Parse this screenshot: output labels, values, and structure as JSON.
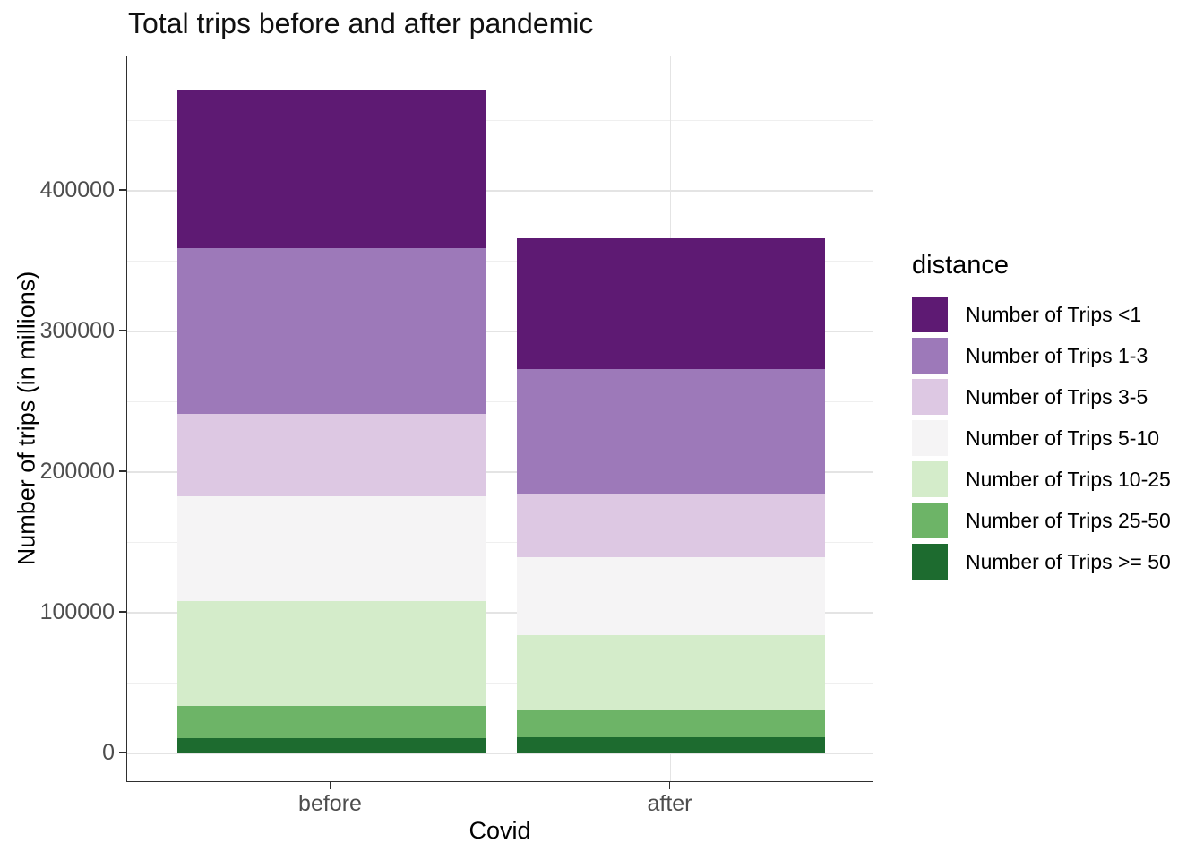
{
  "title": "Total trips before and after pandemic",
  "axes": {
    "x_label": "Covid",
    "y_label": "Number of trips (in millions)",
    "x_tick_labels": [
      "before",
      "after"
    ],
    "y_tick_labels": [
      "0",
      "100000",
      "200000",
      "300000",
      "400000"
    ]
  },
  "legend": {
    "title": "distance"
  },
  "chart_data": {
    "type": "bar",
    "stacked": true,
    "title": "Total trips before and after pandemic",
    "xlabel": "Covid",
    "ylabel": "Number of trips (in millions)",
    "categories": [
      "before",
      "after"
    ],
    "series": [
      {
        "name": "Number of Trips <1",
        "color": "#5e1a73",
        "values": [
          112000,
          92500
        ]
      },
      {
        "name": "Number of Trips 1-3",
        "color": "#9d79b9",
        "values": [
          118000,
          89000
        ]
      },
      {
        "name": "Number of Trips 3-5",
        "color": "#ddc8e3",
        "values": [
          59000,
          45000
        ]
      },
      {
        "name": "Number of Trips 5-10",
        "color": "#f5f4f5",
        "values": [
          74000,
          55500
        ]
      },
      {
        "name": "Number of Trips 10-25",
        "color": "#d4ecca",
        "values": [
          74500,
          53500
        ]
      },
      {
        "name": "Number of Trips 25-50",
        "color": "#6db467",
        "values": [
          23000,
          19000
        ]
      },
      {
        "name": "Number of Trips >= 50",
        "color": "#1d6b2f",
        "values": [
          11000,
          11500
        ]
      }
    ],
    "ylim": [
      0,
      495000
    ],
    "y_major_step": 100000,
    "y_minor_step": 50000,
    "grid": true,
    "legend_position": "right",
    "panel_border": true,
    "background_color": "#ffffff",
    "gridline_color": "#e4e4e4",
    "axis_text_color": "#4d4d4d"
  }
}
